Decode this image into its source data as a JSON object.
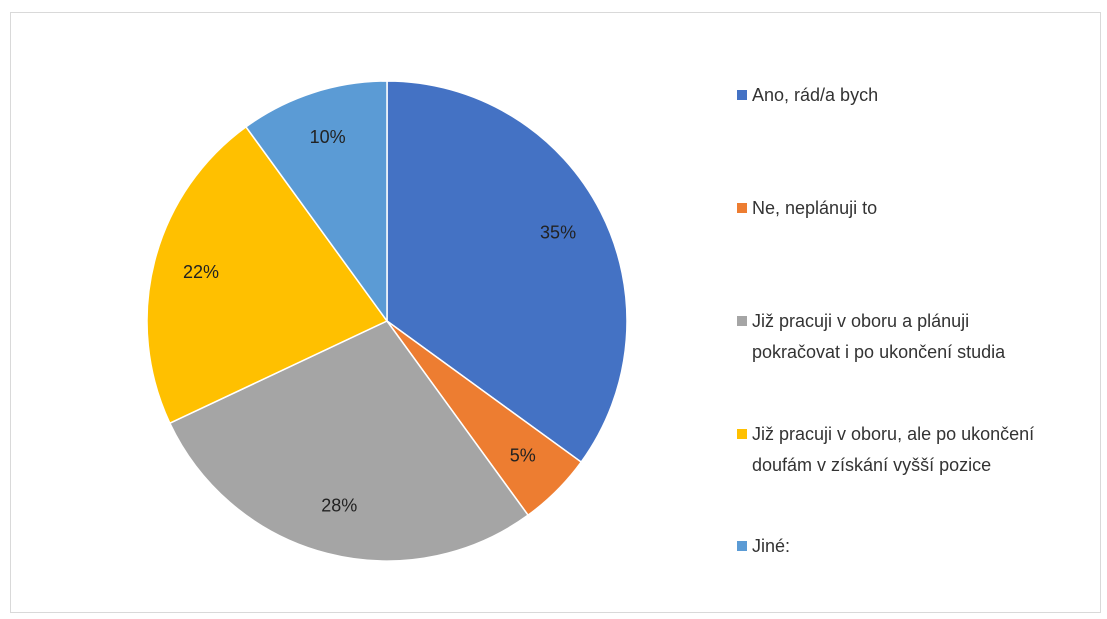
{
  "chart_data": {
    "type": "pie",
    "categories": [
      "Ano, rád/a bych",
      "Ne, neplánuji to",
      "Již pracuji v oboru a plánuji pokračovat i po ukončení studia",
      "Již pracuji v oboru, ale po ukončení doufám v získání vyšší pozice",
      "Jiné:"
    ],
    "values": [
      35,
      5,
      28,
      22,
      10
    ],
    "value_labels": [
      "35%",
      "5%",
      "28%",
      "22%",
      "10%"
    ],
    "colors": [
      "#4472c4",
      "#ed7d31",
      "#a5a5a5",
      "#ffc000",
      "#5b9bd5"
    ],
    "legend": "right"
  }
}
